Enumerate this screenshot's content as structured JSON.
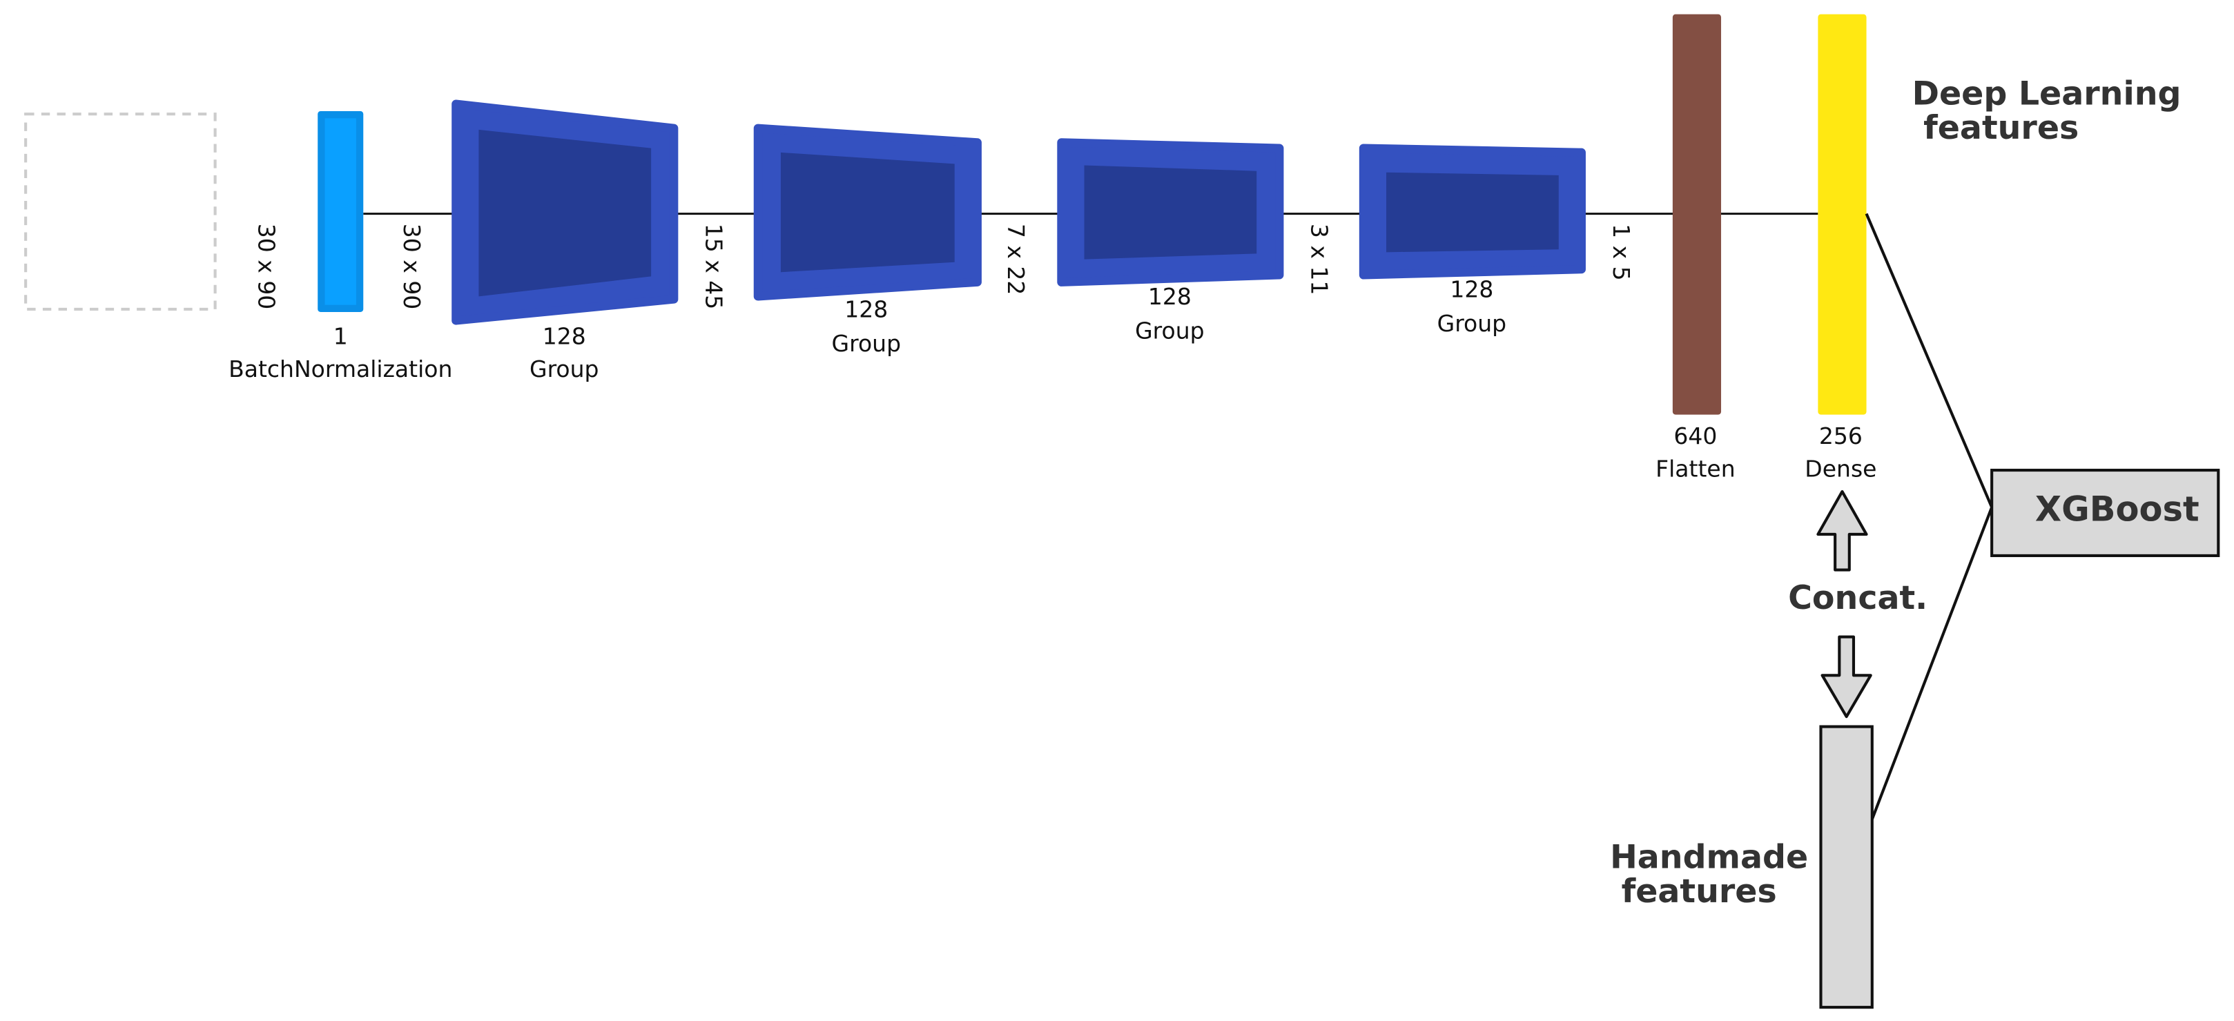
{
  "layers": [
    {
      "units": "1",
      "name": "BatchNormalization"
    },
    {
      "units": "128",
      "name": "Group"
    },
    {
      "units": "128",
      "name": "Group"
    },
    {
      "units": "128",
      "name": "Group"
    },
    {
      "units": "128",
      "name": "Group"
    },
    {
      "units": "640",
      "name": "Flatten"
    },
    {
      "units": "256",
      "name": "Dense"
    }
  ],
  "shapes": [
    "30 x 90",
    "30 x 90",
    "15 x 45",
    "7 x 22",
    "3 x 11",
    "1 x 5"
  ],
  "deep_learning_label": [
    "Deep Learning",
    "features"
  ],
  "handmade_label": [
    "Handmade",
    "features"
  ],
  "concat_label": "Concat.",
  "model_label": "XGBoost"
}
